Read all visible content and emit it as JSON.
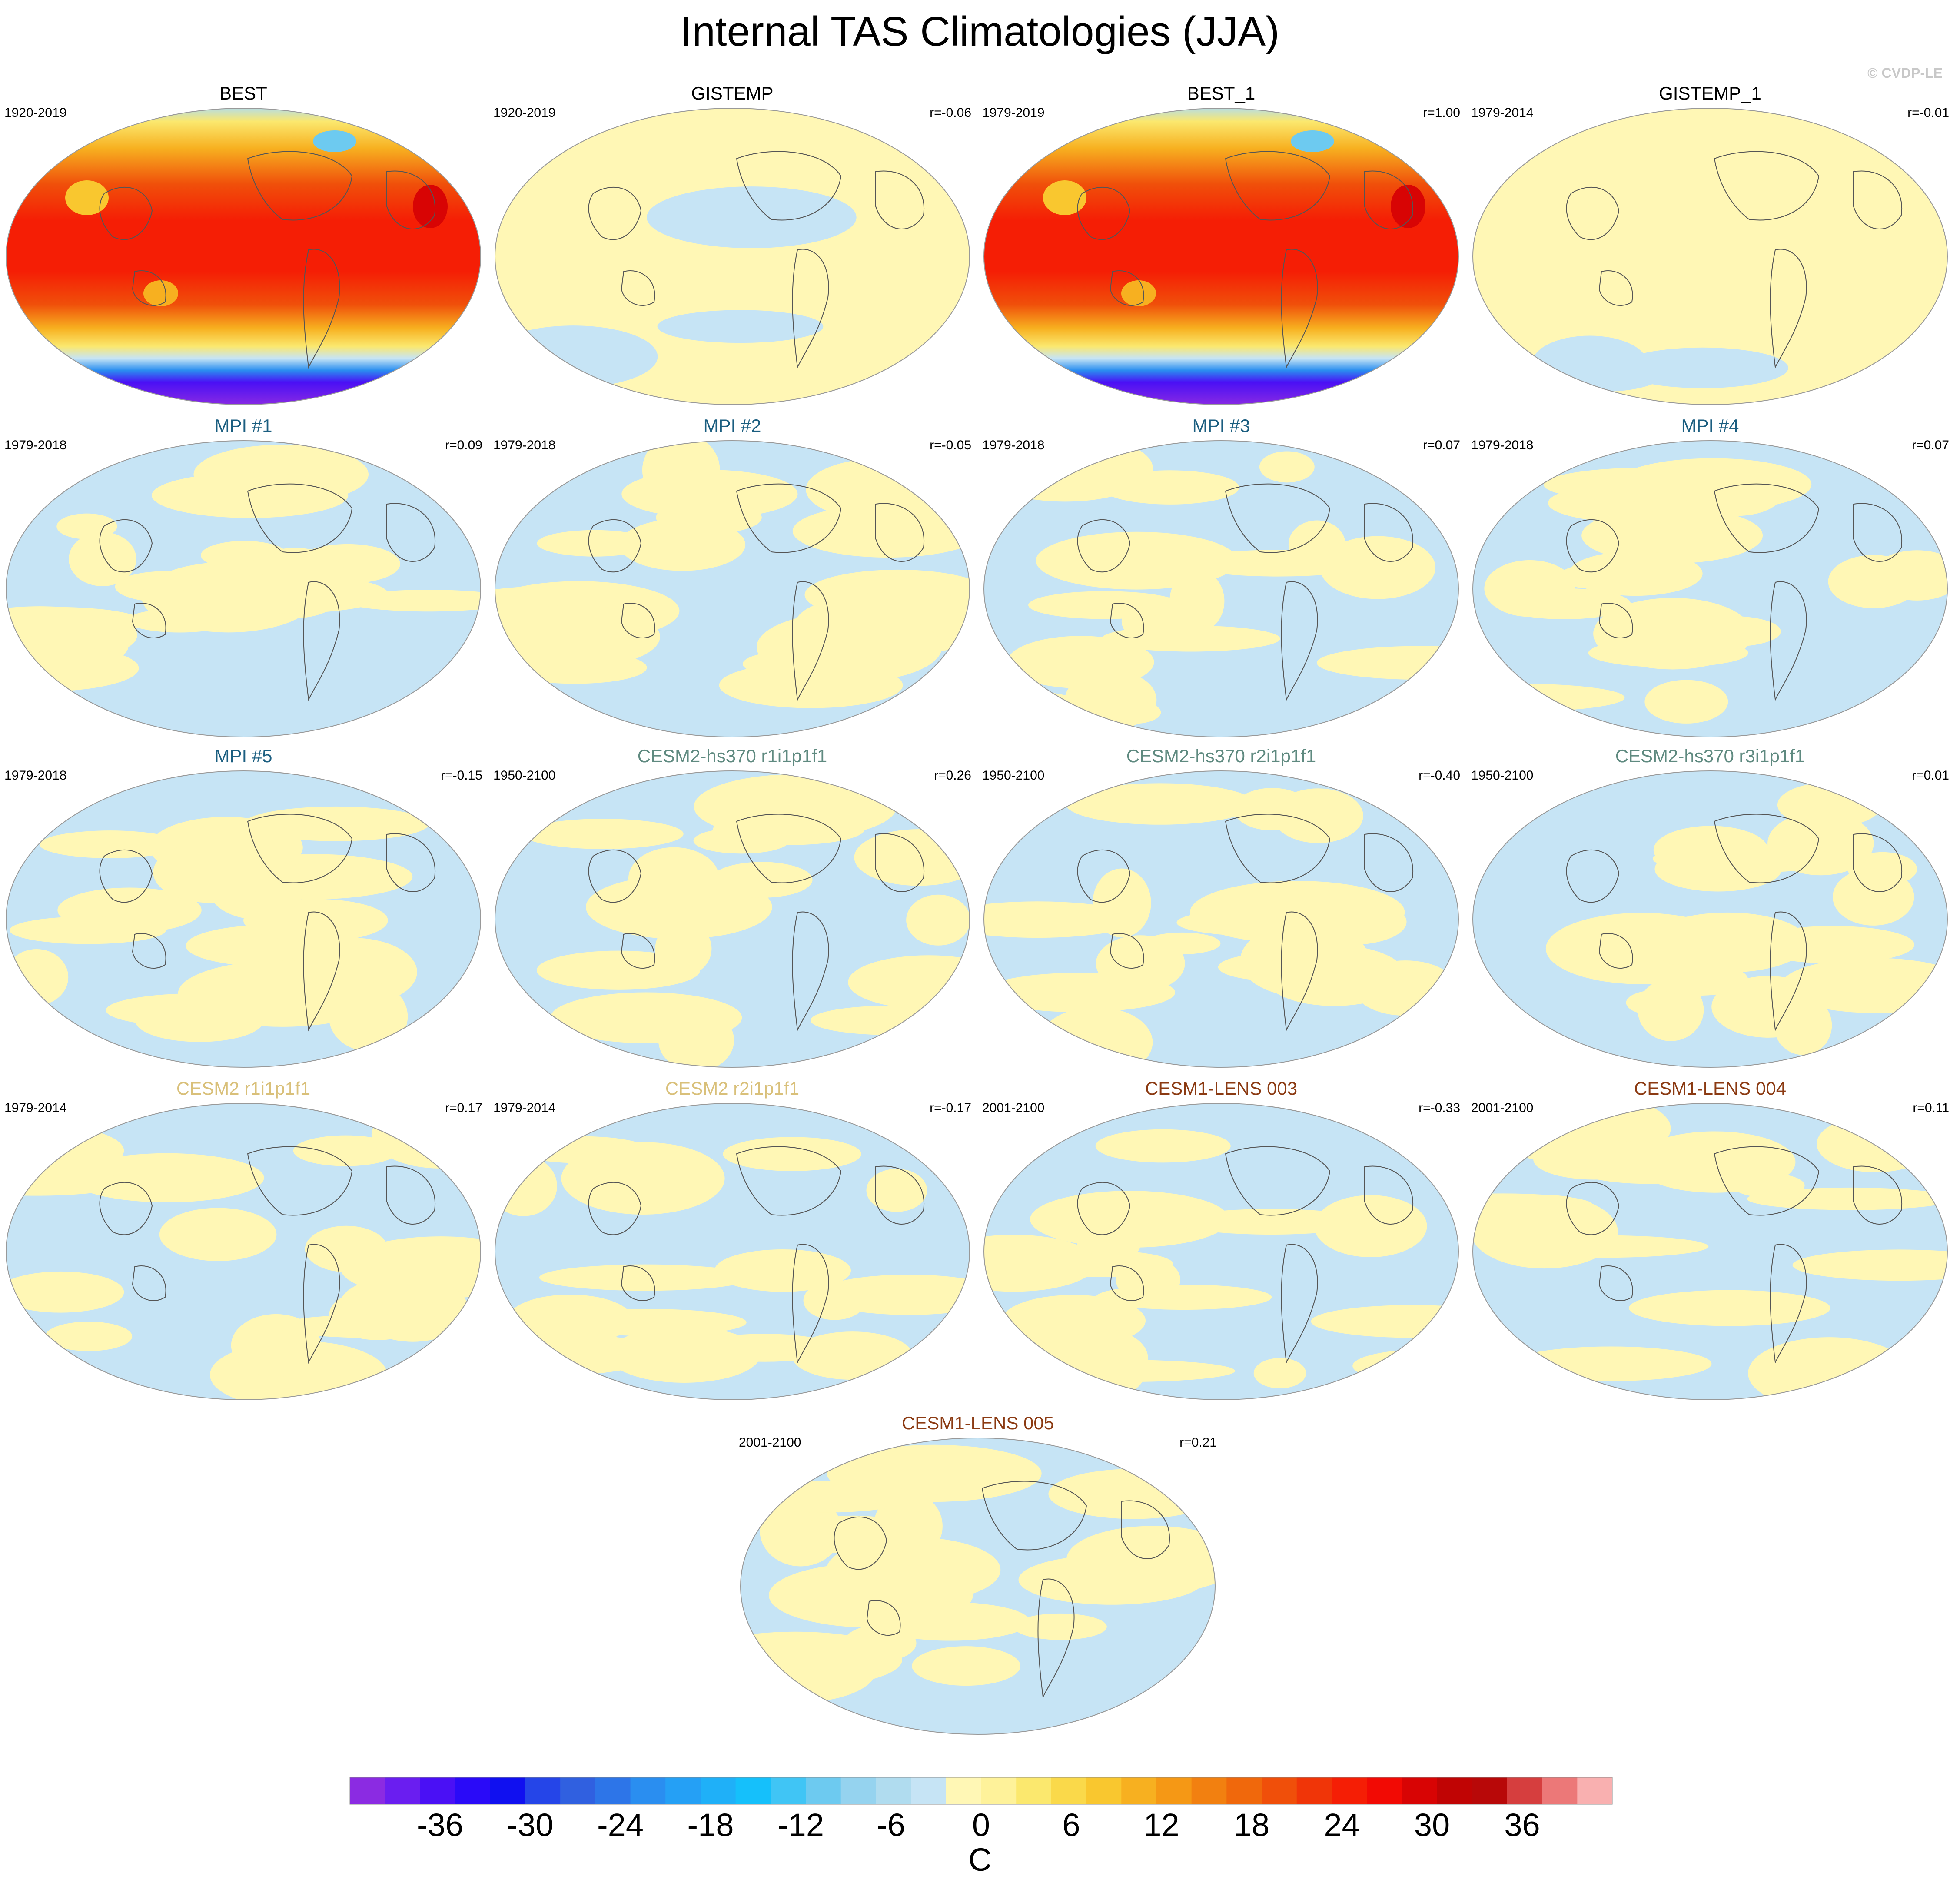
{
  "title": "Internal TAS Climatologies (JJA)",
  "copyright": "© CVDP-LE",
  "colors": {
    "obs_title": "#000000",
    "mpi_title": "#1b5e80",
    "cesm2_hs370_title": "#5f8a80",
    "cesm2_title": "#d9c07a",
    "cesm1_lens_title": "#8b3a12",
    "cold_anomaly": "#c6e4f5",
    "warm_anomaly": "#fff7b5"
  },
  "panels": [
    {
      "title": "BEST",
      "years": "1920-2019",
      "r": "",
      "group": "obs",
      "kind": "full"
    },
    {
      "title": "GISTEMP",
      "years": "1920-2019",
      "r": "r=-0.06",
      "group": "obs",
      "kind": "anom"
    },
    {
      "title": "BEST_1",
      "years": "1979-2019",
      "r": "r=1.00",
      "group": "obs",
      "kind": "full"
    },
    {
      "title": "GISTEMP_1",
      "years": "1979-2014",
      "r": "r=-0.01",
      "group": "obs",
      "kind": "anom"
    },
    {
      "title": "MPI #1",
      "years": "1979-2018",
      "r": "r=0.09",
      "group": "mpi",
      "kind": "anom"
    },
    {
      "title": "MPI #2",
      "years": "1979-2018",
      "r": "r=-0.05",
      "group": "mpi",
      "kind": "anom"
    },
    {
      "title": "MPI #3",
      "years": "1979-2018",
      "r": "r=0.07",
      "group": "mpi",
      "kind": "anom"
    },
    {
      "title": "MPI #4",
      "years": "1979-2018",
      "r": "r=0.07",
      "group": "mpi",
      "kind": "anom"
    },
    {
      "title": "MPI #5",
      "years": "1979-2018",
      "r": "r=-0.15",
      "group": "mpi",
      "kind": "anom"
    },
    {
      "title": "CESM2-hs370 r1i1p1f1",
      "years": "1950-2100",
      "r": "r=0.26",
      "group": "cesm2_hs370",
      "kind": "anom"
    },
    {
      "title": "CESM2-hs370 r2i1p1f1",
      "years": "1950-2100",
      "r": "r=-0.40",
      "group": "cesm2_hs370",
      "kind": "anom"
    },
    {
      "title": "CESM2-hs370 r3i1p1f1",
      "years": "1950-2100",
      "r": "r=0.01",
      "group": "cesm2_hs370",
      "kind": "anom"
    },
    {
      "title": "CESM2 r1i1p1f1",
      "years": "1979-2014",
      "r": "r=0.17",
      "group": "cesm2",
      "kind": "anom"
    },
    {
      "title": "CESM2 r2i1p1f1",
      "years": "1979-2014",
      "r": "r=-0.17",
      "group": "cesm2",
      "kind": "anom"
    },
    {
      "title": "CESM1-LENS 003",
      "years": "2001-2100",
      "r": "r=-0.33",
      "group": "cesm1_lens",
      "kind": "anom"
    },
    {
      "title": "CESM1-LENS 004",
      "years": "2001-2100",
      "r": "r=0.11",
      "group": "cesm1_lens",
      "kind": "anom"
    },
    {
      "title": "CESM1-LENS 005",
      "years": "2001-2100",
      "r": "r=0.21",
      "group": "cesm1_lens",
      "kind": "anom"
    }
  ],
  "colorbar": {
    "unit": "C",
    "tick_labels": [
      "-36",
      "-30",
      "-24",
      "-18",
      "-12",
      "-6",
      "0",
      "6",
      "12",
      "18",
      "24",
      "30",
      "36"
    ],
    "tick_values": [
      -36,
      -30,
      -24,
      -18,
      -12,
      -6,
      0,
      6,
      12,
      18,
      24,
      30,
      36
    ],
    "range": [
      -42,
      42
    ],
    "colors": [
      "#8b2be2",
      "#6a1ef0",
      "#4a10f5",
      "#2a0af8",
      "#1010f0",
      "#2545e8",
      "#3060e0",
      "#2d75e8",
      "#2a8ef0",
      "#25a0f5",
      "#1fb0f8",
      "#15c0fb",
      "#40c5f5",
      "#6dcaf0",
      "#95d3ef",
      "#b0dcef",
      "#c6e4f5",
      "#fff7b5",
      "#fef29a",
      "#fbe86e",
      "#fad94a",
      "#f9c72f",
      "#f7b020",
      "#f59815",
      "#f28010",
      "#f0680c",
      "#f04f0a",
      "#f03508",
      "#f51e05",
      "#f20a04",
      "#d80404",
      "#c00404",
      "#b80808",
      "#d63e3e",
      "#ec7878",
      "#f9b0b0"
    ]
  }
}
